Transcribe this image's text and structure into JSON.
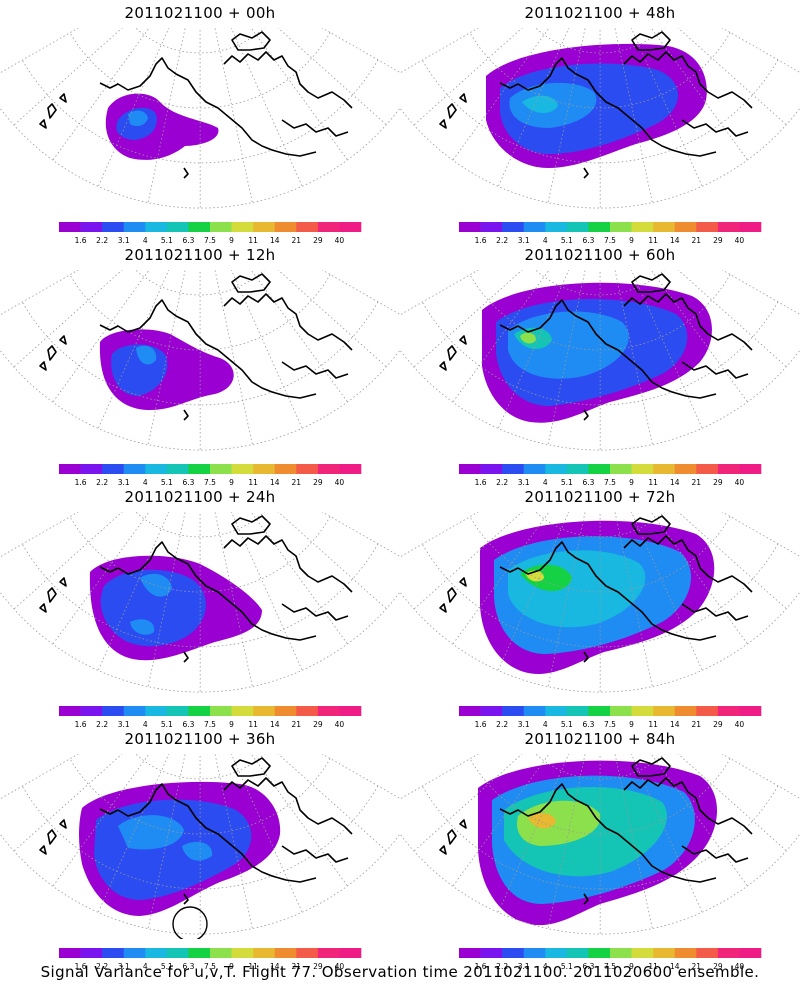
{
  "footer_caption": "Signal Variance for u,v,T. Flight 77. Observation time 2011021100. 2011020600 ensemble.",
  "colorbar": {
    "labels": [
      "1.6",
      "2.2",
      "3.1",
      "4",
      "5.1",
      "6.3",
      "7.5",
      "9",
      "11",
      "14",
      "21",
      "29",
      "40"
    ],
    "colors": [
      "#9b00d2",
      "#7a14ee",
      "#2b4cf0",
      "#1e8cf2",
      "#18b8e0",
      "#14c4b4",
      "#14d244",
      "#8ce04c",
      "#d4dc3c",
      "#e8b830",
      "#f08c30",
      "#f45a48",
      "#f02478",
      "#f01c86"
    ]
  },
  "chart_data": {
    "type": "heatmap",
    "title": "Signal Variance for u,v,T. Flight 77. Observation time 2011021100. 2011020600 ensemble.",
    "color_scale_levels": [
      1.6,
      2.2,
      3.1,
      4,
      5.1,
      6.3,
      7.5,
      9,
      11,
      14,
      21,
      29,
      40
    ],
    "panels": [
      {
        "title": "2011021100 + 00h",
        "lead_hours": 0
      },
      {
        "title": "2011021100 + 48h",
        "lead_hours": 48
      },
      {
        "title": "2011021100 + 12h",
        "lead_hours": 12
      },
      {
        "title": "2011021100 + 60h",
        "lead_hours": 60
      },
      {
        "title": "2011021100 + 24h",
        "lead_hours": 24
      },
      {
        "title": "2011021100 + 72h",
        "lead_hours": 72
      },
      {
        "title": "2011021100 + 36h",
        "lead_hours": 36
      },
      {
        "title": "2011021100 + 84h",
        "lead_hours": 84
      }
    ]
  }
}
